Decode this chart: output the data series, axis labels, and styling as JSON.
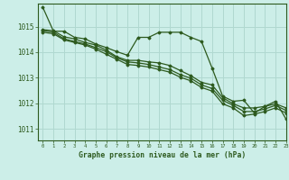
{
  "title": "Graphe pression niveau de la mer (hPa)",
  "background_color": "#cceee8",
  "grid_color": "#b0d8d0",
  "line_color": "#2d5a1e",
  "xlim": [
    -0.5,
    23
  ],
  "ylim": [
    1010.55,
    1015.9
  ],
  "yticks": [
    1011,
    1012,
    1013,
    1014,
    1015
  ],
  "xticks": [
    0,
    1,
    2,
    3,
    4,
    5,
    6,
    7,
    8,
    9,
    10,
    11,
    12,
    13,
    14,
    15,
    16,
    17,
    18,
    19,
    20,
    21,
    22,
    23
  ],
  "series": [
    [
      1015.75,
      1014.82,
      1014.82,
      1014.58,
      1014.52,
      1014.32,
      1014.18,
      1014.02,
      1013.88,
      1014.58,
      1014.58,
      1014.78,
      1014.78,
      1014.78,
      1014.58,
      1014.42,
      1013.38,
      1012.28,
      1012.08,
      1012.12,
      1011.62,
      1011.88,
      1012.08,
      1011.38
    ],
    [
      1014.88,
      1014.84,
      1014.6,
      1014.52,
      1014.38,
      1014.28,
      1014.08,
      1013.82,
      1013.68,
      1013.68,
      1013.62,
      1013.58,
      1013.48,
      1013.28,
      1013.08,
      1012.82,
      1012.72,
      1012.22,
      1011.98,
      1011.82,
      1011.82,
      1011.88,
      1011.98,
      1011.82
    ],
    [
      1014.84,
      1014.78,
      1014.52,
      1014.42,
      1014.32,
      1014.18,
      1014.02,
      1013.78,
      1013.62,
      1013.58,
      1013.52,
      1013.42,
      1013.32,
      1013.12,
      1012.98,
      1012.72,
      1012.58,
      1012.12,
      1011.92,
      1011.68,
      1011.68,
      1011.78,
      1011.92,
      1011.72
    ],
    [
      1014.78,
      1014.72,
      1014.48,
      1014.38,
      1014.28,
      1014.12,
      1013.92,
      1013.72,
      1013.52,
      1013.48,
      1013.42,
      1013.32,
      1013.22,
      1013.02,
      1012.88,
      1012.62,
      1012.48,
      1011.98,
      1011.82,
      1011.52,
      1011.58,
      1011.68,
      1011.82,
      1011.62
    ]
  ]
}
